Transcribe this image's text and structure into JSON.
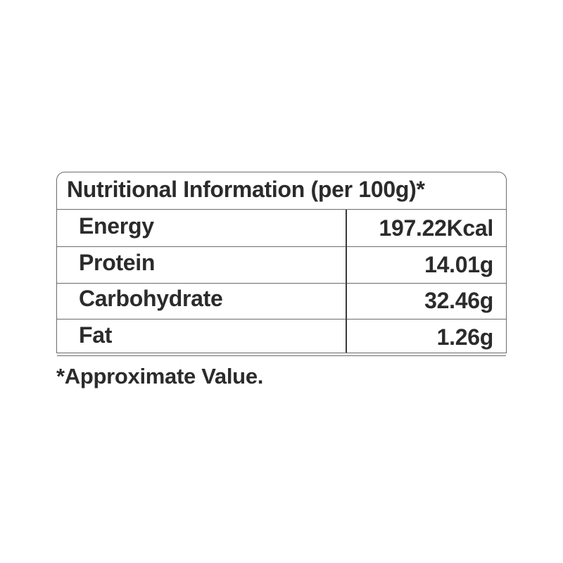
{
  "table": {
    "title": "Nutritional Information (per 100g)*",
    "rows": [
      {
        "label": "Energy",
        "value": "197.22Kcal"
      },
      {
        "label": "Protein",
        "value": "14.01g"
      },
      {
        "label": "Carbohydrate",
        "value": "32.46g"
      },
      {
        "label": "Fat",
        "value": "1.26g"
      }
    ]
  },
  "footnote": "*Approximate Value."
}
